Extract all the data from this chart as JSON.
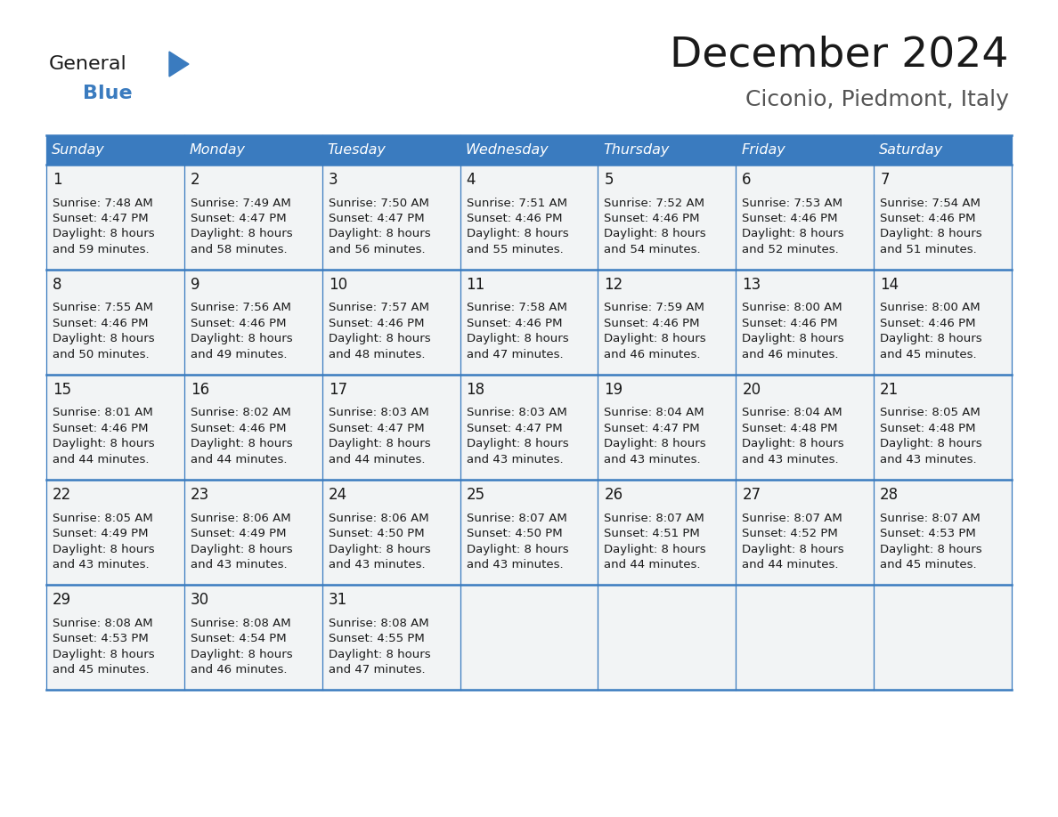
{
  "title": "December 2024",
  "subtitle": "Ciconio, Piedmont, Italy",
  "header_bg": "#3a7bbf",
  "header_text_color": "#ffffff",
  "cell_bg": "#f2f4f5",
  "border_color": "#3a7bbf",
  "row_divider_color": "#4a7fb5",
  "days_of_week": [
    "Sunday",
    "Monday",
    "Tuesday",
    "Wednesday",
    "Thursday",
    "Friday",
    "Saturday"
  ],
  "calendar": [
    [
      {
        "day": 1,
        "sunrise": "7:48 AM",
        "sunset": "4:47 PM",
        "daylight_minutes": 59
      },
      {
        "day": 2,
        "sunrise": "7:49 AM",
        "sunset": "4:47 PM",
        "daylight_minutes": 58
      },
      {
        "day": 3,
        "sunrise": "7:50 AM",
        "sunset": "4:47 PM",
        "daylight_minutes": 56
      },
      {
        "day": 4,
        "sunrise": "7:51 AM",
        "sunset": "4:46 PM",
        "daylight_minutes": 55
      },
      {
        "day": 5,
        "sunrise": "7:52 AM",
        "sunset": "4:46 PM",
        "daylight_minutes": 54
      },
      {
        "day": 6,
        "sunrise": "7:53 AM",
        "sunset": "4:46 PM",
        "daylight_minutes": 52
      },
      {
        "day": 7,
        "sunrise": "7:54 AM",
        "sunset": "4:46 PM",
        "daylight_minutes": 51
      }
    ],
    [
      {
        "day": 8,
        "sunrise": "7:55 AM",
        "sunset": "4:46 PM",
        "daylight_minutes": 50
      },
      {
        "day": 9,
        "sunrise": "7:56 AM",
        "sunset": "4:46 PM",
        "daylight_minutes": 49
      },
      {
        "day": 10,
        "sunrise": "7:57 AM",
        "sunset": "4:46 PM",
        "daylight_minutes": 48
      },
      {
        "day": 11,
        "sunrise": "7:58 AM",
        "sunset": "4:46 PM",
        "daylight_minutes": 47
      },
      {
        "day": 12,
        "sunrise": "7:59 AM",
        "sunset": "4:46 PM",
        "daylight_minutes": 46
      },
      {
        "day": 13,
        "sunrise": "8:00 AM",
        "sunset": "4:46 PM",
        "daylight_minutes": 46
      },
      {
        "day": 14,
        "sunrise": "8:00 AM",
        "sunset": "4:46 PM",
        "daylight_minutes": 45
      }
    ],
    [
      {
        "day": 15,
        "sunrise": "8:01 AM",
        "sunset": "4:46 PM",
        "daylight_minutes": 44
      },
      {
        "day": 16,
        "sunrise": "8:02 AM",
        "sunset": "4:46 PM",
        "daylight_minutes": 44
      },
      {
        "day": 17,
        "sunrise": "8:03 AM",
        "sunset": "4:47 PM",
        "daylight_minutes": 44
      },
      {
        "day": 18,
        "sunrise": "8:03 AM",
        "sunset": "4:47 PM",
        "daylight_minutes": 43
      },
      {
        "day": 19,
        "sunrise": "8:04 AM",
        "sunset": "4:47 PM",
        "daylight_minutes": 43
      },
      {
        "day": 20,
        "sunrise": "8:04 AM",
        "sunset": "4:48 PM",
        "daylight_minutes": 43
      },
      {
        "day": 21,
        "sunrise": "8:05 AM",
        "sunset": "4:48 PM",
        "daylight_minutes": 43
      }
    ],
    [
      {
        "day": 22,
        "sunrise": "8:05 AM",
        "sunset": "4:49 PM",
        "daylight_minutes": 43
      },
      {
        "day": 23,
        "sunrise": "8:06 AM",
        "sunset": "4:49 PM",
        "daylight_minutes": 43
      },
      {
        "day": 24,
        "sunrise": "8:06 AM",
        "sunset": "4:50 PM",
        "daylight_minutes": 43
      },
      {
        "day": 25,
        "sunrise": "8:07 AM",
        "sunset": "4:50 PM",
        "daylight_minutes": 43
      },
      {
        "day": 26,
        "sunrise": "8:07 AM",
        "sunset": "4:51 PM",
        "daylight_minutes": 44
      },
      {
        "day": 27,
        "sunrise": "8:07 AM",
        "sunset": "4:52 PM",
        "daylight_minutes": 44
      },
      {
        "day": 28,
        "sunrise": "8:07 AM",
        "sunset": "4:53 PM",
        "daylight_minutes": 45
      }
    ],
    [
      {
        "day": 29,
        "sunrise": "8:08 AM",
        "sunset": "4:53 PM",
        "daylight_minutes": 45
      },
      {
        "day": 30,
        "sunrise": "8:08 AM",
        "sunset": "4:54 PM",
        "daylight_minutes": 46
      },
      {
        "day": 31,
        "sunrise": "8:08 AM",
        "sunset": "4:55 PM",
        "daylight_minutes": 47
      },
      null,
      null,
      null,
      null
    ]
  ],
  "logo_text_general": "General",
  "logo_text_blue": "Blue",
  "logo_triangle_color": "#3a7bbf",
  "fig_width": 11.88,
  "fig_height": 9.18,
  "dpi": 100
}
